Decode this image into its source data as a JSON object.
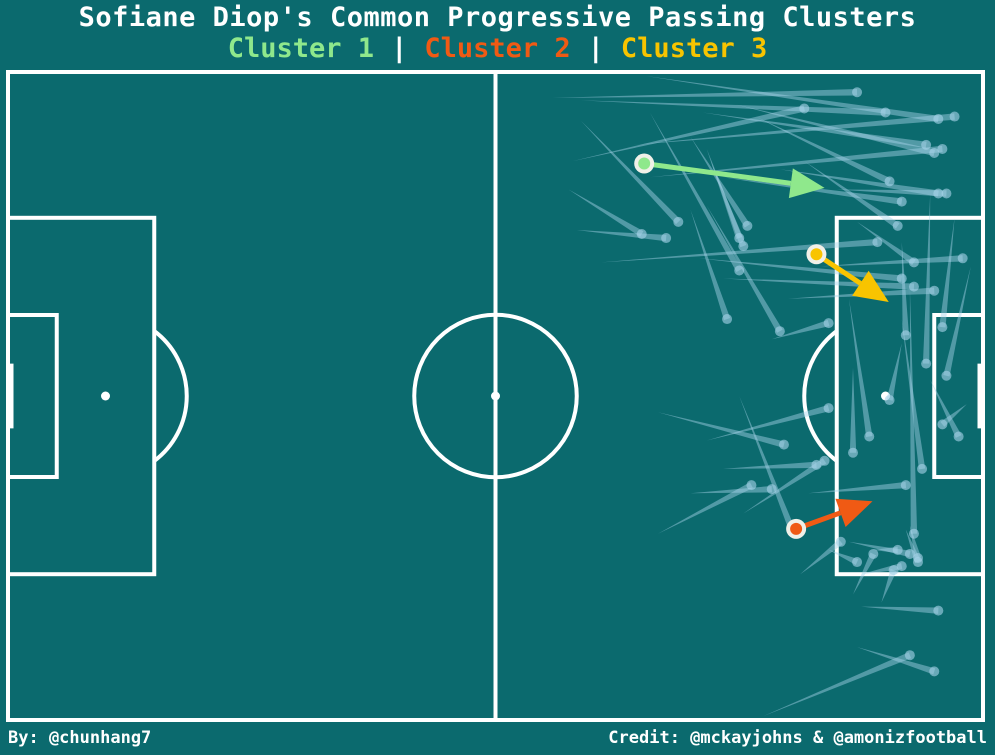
{
  "header": {
    "title": "Sofiane Diop's Common Progressive Passing Clusters",
    "separator": "|"
  },
  "footer": {
    "left": "By: @chunhang7",
    "right": "Credit: @mckayjohns & @amonizfootball"
  },
  "colors": {
    "background": "#0b6a6e",
    "lines": "#ffffff",
    "pass": "#a9d4ea"
  },
  "chart_data": {
    "type": "scatter",
    "pitch_length": 120,
    "pitch_width": 80,
    "clusters": [
      {
        "name": "Cluster 1",
        "color": "#8fe88c",
        "start": [
          78.3,
          11.3
        ],
        "end": [
          100.5,
          14.3
        ]
      },
      {
        "name": "Cluster 2",
        "color": "#f05a14",
        "start": [
          97.0,
          56.4
        ],
        "end": [
          106.4,
          53.0
        ]
      },
      {
        "name": "Cluster 3",
        "color": "#f8c400",
        "start": [
          99.5,
          22.5
        ],
        "end": [
          108.4,
          28.4
        ]
      }
    ],
    "passes": [
      [
        67.0,
        3.2,
        104.5,
        2.5
      ],
      [
        70.5,
        3.5,
        108.0,
        5.0
      ],
      [
        78.5,
        0.5,
        114.5,
        5.8
      ],
      [
        77.0,
        9.0,
        116.5,
        5.5
      ],
      [
        79.0,
        13.0,
        115.0,
        9.5
      ],
      [
        85.5,
        5.0,
        113.0,
        9.0
      ],
      [
        89.5,
        4.0,
        114.0,
        10.0
      ],
      [
        92.0,
        5.5,
        108.5,
        13.5
      ],
      [
        69.5,
        11.0,
        98.0,
        4.5
      ],
      [
        70.5,
        6.0,
        82.5,
        18.5
      ],
      [
        84.0,
        8.0,
        91.0,
        19.0
      ],
      [
        86.0,
        9.5,
        90.0,
        20.5
      ],
      [
        86.5,
        11.0,
        90.5,
        21.5
      ],
      [
        69.0,
        14.5,
        78.0,
        20.0
      ],
      [
        70.0,
        19.5,
        81.0,
        20.5
      ],
      [
        79.0,
        5.0,
        90.0,
        24.5
      ],
      [
        84.0,
        17.0,
        88.5,
        30.5
      ],
      [
        86.0,
        16.5,
        95.0,
        32.0
      ],
      [
        88.0,
        13.0,
        110.0,
        16.0
      ],
      [
        95.0,
        12.0,
        114.5,
        15.0
      ],
      [
        98.0,
        11.0,
        109.5,
        19.0
      ],
      [
        102.0,
        14.5,
        115.5,
        15.0
      ],
      [
        104.5,
        18.5,
        111.5,
        23.5
      ],
      [
        73.0,
        23.5,
        107.0,
        21.0
      ],
      [
        85.0,
        23.0,
        110.0,
        25.5
      ],
      [
        88.0,
        25.5,
        111.5,
        26.5
      ],
      [
        96.0,
        28.0,
        114.0,
        27.0
      ],
      [
        100.0,
        24.0,
        117.5,
        23.0
      ],
      [
        116.5,
        18.0,
        115.0,
        31.5
      ],
      [
        118.5,
        24.0,
        115.5,
        37.5
      ],
      [
        113.5,
        15.0,
        113.0,
        36.0
      ],
      [
        110.0,
        21.0,
        110.5,
        32.5
      ],
      [
        110.0,
        33.5,
        108.5,
        40.5
      ],
      [
        103.5,
        28.0,
        106.0,
        45.0
      ],
      [
        104.0,
        36.5,
        104.0,
        47.0
      ],
      [
        110.0,
        30.5,
        112.5,
        49.0
      ],
      [
        111.0,
        26.5,
        111.5,
        57.0
      ],
      [
        113.5,
        38.0,
        117.0,
        45.0
      ],
      [
        86.0,
        45.5,
        101.0,
        41.5
      ],
      [
        88.0,
        49.0,
        99.5,
        48.5
      ],
      [
        90.0,
        40.0,
        96.5,
        56.5
      ],
      [
        90.5,
        54.5,
        100.5,
        48.0
      ],
      [
        80.0,
        57.0,
        91.5,
        51.0
      ],
      [
        84.0,
        52.0,
        94.0,
        51.5
      ],
      [
        98.5,
        52.0,
        110.5,
        51.0
      ],
      [
        103.5,
        58.0,
        111.0,
        59.5
      ],
      [
        104.0,
        64.5,
        106.5,
        59.5
      ],
      [
        105.0,
        62.0,
        110.0,
        61.0
      ],
      [
        106.5,
        59.0,
        109.5,
        59.0
      ],
      [
        107.5,
        65.5,
        109.0,
        61.5
      ],
      [
        111.0,
        56.0,
        112.0,
        60.0
      ],
      [
        101.0,
        59.0,
        104.5,
        60.5
      ],
      [
        97.5,
        62.0,
        102.5,
        58.0
      ],
      [
        105.0,
        66.0,
        114.5,
        66.5
      ],
      [
        104.5,
        71.0,
        114.0,
        74.0
      ],
      [
        93.0,
        79.5,
        111.0,
        72.0
      ],
      [
        118.0,
        41.0,
        115.0,
        43.5
      ],
      [
        110.5,
        56.5,
        112.0,
        60.5
      ],
      [
        80.0,
        42.0,
        95.5,
        46.0
      ],
      [
        94.0,
        33.0,
        101.0,
        31.0
      ]
    ]
  }
}
